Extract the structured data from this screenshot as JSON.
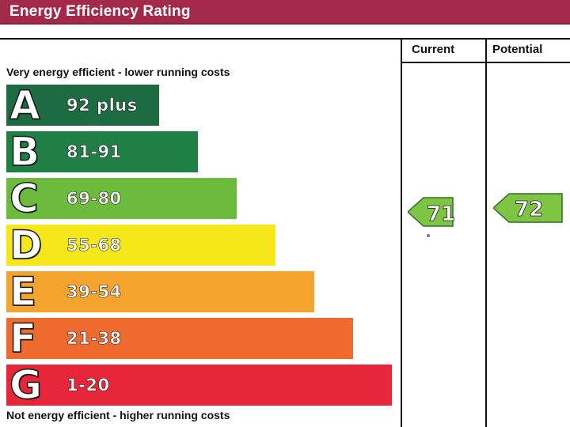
{
  "title": "Energy Efficiency Rating",
  "columns": {
    "current": "Current",
    "potential": "Potential"
  },
  "top_label": "Very energy efficient - lower running costs",
  "bottom_label": "Not energy efficient - higher running costs",
  "chart_data": {
    "type": "bar",
    "categories": [
      "A",
      "B",
      "C",
      "D",
      "E",
      "F",
      "G"
    ],
    "ranges": [
      "92 plus",
      "81-91",
      "69-80",
      "55-68",
      "39-54",
      "21-38",
      "1-20"
    ],
    "colors": [
      "#1d6b41",
      "#1f7f45",
      "#6cbb3c",
      "#f5e71a",
      "#f4a42c",
      "#ee6a2f",
      "#e8263a"
    ],
    "current": {
      "value": 71,
      "label": "71",
      "band": "C",
      "color": "#7dc542"
    },
    "potential": {
      "value": 72,
      "label": "72",
      "band": "C",
      "color": "#7dc542"
    }
  }
}
